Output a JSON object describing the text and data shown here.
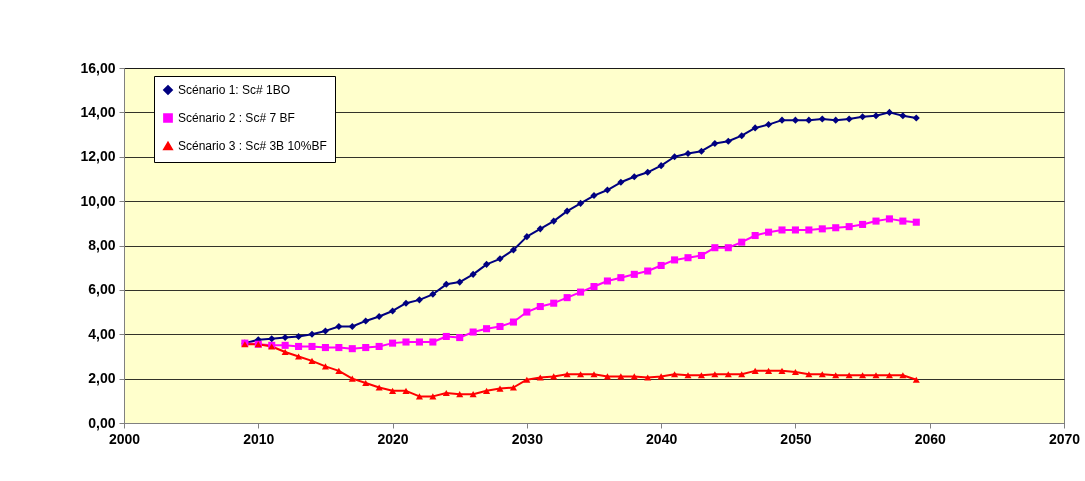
{
  "chart_data": {
    "type": "line",
    "x": [
      2009,
      2010,
      2011,
      2012,
      2013,
      2014,
      2015,
      2016,
      2017,
      2018,
      2019,
      2020,
      2021,
      2022,
      2023,
      2024,
      2025,
      2026,
      2027,
      2028,
      2029,
      2030,
      2031,
      2032,
      2033,
      2034,
      2035,
      2036,
      2037,
      2038,
      2039,
      2040,
      2041,
      2042,
      2043,
      2044,
      2045,
      2046,
      2047,
      2048,
      2049,
      2050,
      2051,
      2052,
      2053,
      2054,
      2055,
      2056,
      2057,
      2058,
      2059
    ],
    "series": [
      {
        "name": "Scénario 1: Sc# 1BO",
        "color": "#000080",
        "marker": "diamond",
        "values": [
          3.6,
          3.75,
          3.8,
          3.85,
          3.9,
          4.0,
          4.15,
          4.35,
          4.35,
          4.6,
          4.8,
          5.05,
          5.4,
          5.55,
          5.8,
          6.25,
          6.35,
          6.7,
          7.15,
          7.4,
          7.8,
          8.4,
          8.75,
          9.1,
          9.55,
          9.9,
          10.25,
          10.5,
          10.85,
          11.1,
          11.3,
          11.6,
          12.0,
          12.15,
          12.25,
          12.6,
          12.7,
          12.95,
          13.3,
          13.45,
          13.65,
          13.65,
          13.65,
          13.7,
          13.65,
          13.7,
          13.8,
          13.85,
          14.0,
          13.85,
          13.75
        ]
      },
      {
        "name": "Scénario 2 : Sc# 7 BF",
        "color": "#ff00ff",
        "marker": "square",
        "values": [
          3.6,
          3.55,
          3.5,
          3.5,
          3.45,
          3.45,
          3.4,
          3.4,
          3.35,
          3.4,
          3.45,
          3.6,
          3.65,
          3.65,
          3.65,
          3.9,
          3.85,
          4.1,
          4.25,
          4.35,
          4.55,
          5.0,
          5.25,
          5.4,
          5.65,
          5.9,
          6.15,
          6.4,
          6.55,
          6.7,
          6.85,
          7.1,
          7.35,
          7.45,
          7.55,
          7.9,
          7.9,
          8.15,
          8.45,
          8.6,
          8.7,
          8.7,
          8.7,
          8.75,
          8.8,
          8.85,
          8.95,
          9.1,
          9.2,
          9.1,
          9.05
        ]
      },
      {
        "name": "Scénario 3 : Sc# 3B 10%BF",
        "color": "#ff0000",
        "marker": "triangle",
        "values": [
          3.55,
          3.55,
          3.45,
          3.2,
          3.0,
          2.8,
          2.55,
          2.35,
          2.0,
          1.8,
          1.6,
          1.45,
          1.45,
          1.2,
          1.2,
          1.35,
          1.3,
          1.3,
          1.45,
          1.55,
          1.6,
          1.95,
          2.05,
          2.1,
          2.2,
          2.2,
          2.2,
          2.1,
          2.1,
          2.1,
          2.05,
          2.1,
          2.2,
          2.15,
          2.15,
          2.2,
          2.2,
          2.2,
          2.35,
          2.35,
          2.35,
          2.3,
          2.2,
          2.2,
          2.15,
          2.15,
          2.15,
          2.15,
          2.15,
          2.15,
          1.95
        ]
      }
    ],
    "xlim": [
      2000,
      2070
    ],
    "xticks": [
      2000,
      2010,
      2020,
      2030,
      2040,
      2050,
      2060,
      2070
    ],
    "ylim": [
      0,
      16
    ],
    "yticks": [
      {
        "value": 0,
        "label": "0,00"
      },
      {
        "value": 2,
        "label": "2,00"
      },
      {
        "value": 4,
        "label": "4,00"
      },
      {
        "value": 6,
        "label": "6,00"
      },
      {
        "value": 8,
        "label": "8,00"
      },
      {
        "value": 10,
        "label": "10,00"
      },
      {
        "value": 12,
        "label": "12,00"
      },
      {
        "value": 14,
        "label": "14,00"
      },
      {
        "value": 16,
        "label": "16,00"
      }
    ],
    "grid": "y",
    "legend": "top left",
    "line_style": "solid"
  }
}
